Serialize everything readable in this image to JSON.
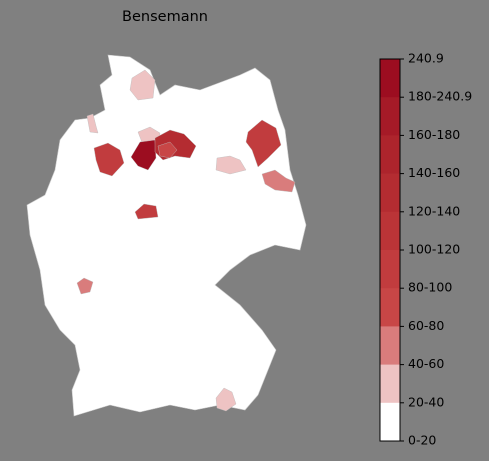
{
  "title": "Bensemann",
  "colorbar": {
    "labels": [
      "240.9",
      "180-240.9",
      "160-180",
      "140-160",
      "120-140",
      "100-120",
      "80-100",
      "60-80",
      "40-60",
      "20-40",
      "0-20"
    ],
    "colors": [
      "#9c0d20",
      "#a51a27",
      "#ad242c",
      "#b42c31",
      "#bb3437",
      "#c13c3e",
      "#c84646",
      "#d97c7c",
      "#eec3c3",
      "#ffffff"
    ]
  }
}
